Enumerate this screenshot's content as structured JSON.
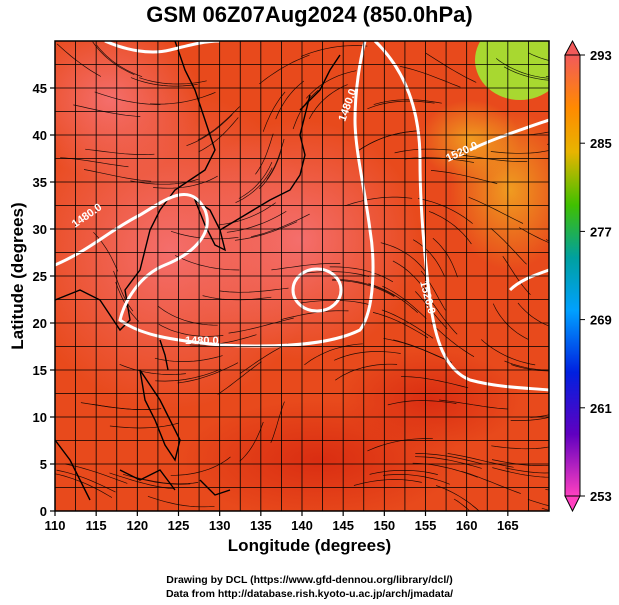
{
  "title": "GSM 06Z07Aug2024 (850.0hPa)",
  "x_axis_label": "Longitude (degrees)",
  "y_axis_label": "Latitude  (degrees)",
  "x_ticks": [
    "110",
    "115",
    "120",
    "125",
    "130",
    "135",
    "140",
    "145",
    "150",
    "155",
    "160",
    "165"
  ],
  "y_ticks": [
    "0",
    "5",
    "10",
    "15",
    "20",
    "25",
    "30",
    "35",
    "40",
    "45"
  ],
  "colorbar_ticks": [
    "293",
    "285",
    "277",
    "269",
    "261",
    "253"
  ],
  "contour_labels": [
    "1480.0",
    "1480.0",
    "1480.0",
    "1520.0",
    "1520.0"
  ],
  "footer_line1": "Drawing by DCL (https://www.gfd-dennou.org/library/dcl/)",
  "footer_line2": "Data from http://database.rish.kyoto-u.ac.jp/arch/jmadata/",
  "colors": {
    "field_warm": "#e8401a",
    "field_hot": "#f06a5a",
    "contour": "#ffffff",
    "coast": "#000000"
  }
}
